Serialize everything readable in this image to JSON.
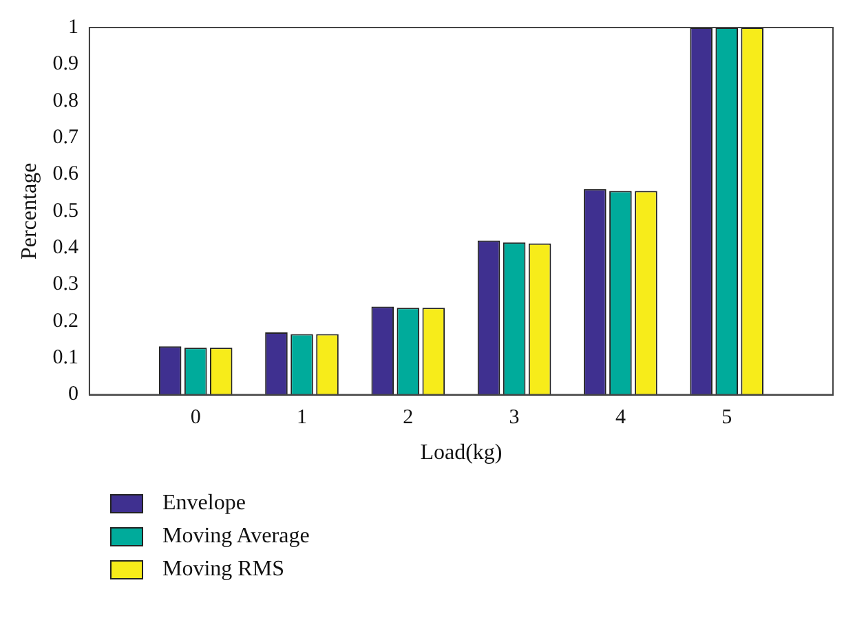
{
  "chart_data": {
    "type": "bar",
    "xlabel": "Load(kg)",
    "ylabel": "Percentage",
    "x": [
      0,
      1,
      2,
      3,
      4,
      5
    ],
    "xlim": [
      -1,
      6
    ],
    "xticks": [
      0,
      1,
      2,
      3,
      4,
      5
    ],
    "ylim": [
      0,
      1
    ],
    "yticks": [
      0,
      0.1,
      0.2,
      0.3,
      0.4,
      0.5,
      0.6,
      0.7,
      0.8,
      0.9,
      1
    ],
    "series": [
      {
        "name": "Envelope",
        "color": "#3f3090",
        "values": [
          0.132,
          0.17,
          0.24,
          0.42,
          0.56,
          1
        ]
      },
      {
        "name": "Moving Average",
        "color": "#00ab9b",
        "values": [
          0.128,
          0.165,
          0.237,
          0.415,
          0.555,
          1
        ]
      },
      {
        "name": "Moving RMS",
        "color": "#f7ec1a",
        "values": [
          0.128,
          0.165,
          0.237,
          0.412,
          0.555,
          1
        ]
      }
    ],
    "grid": false,
    "legend": "bottom left"
  }
}
